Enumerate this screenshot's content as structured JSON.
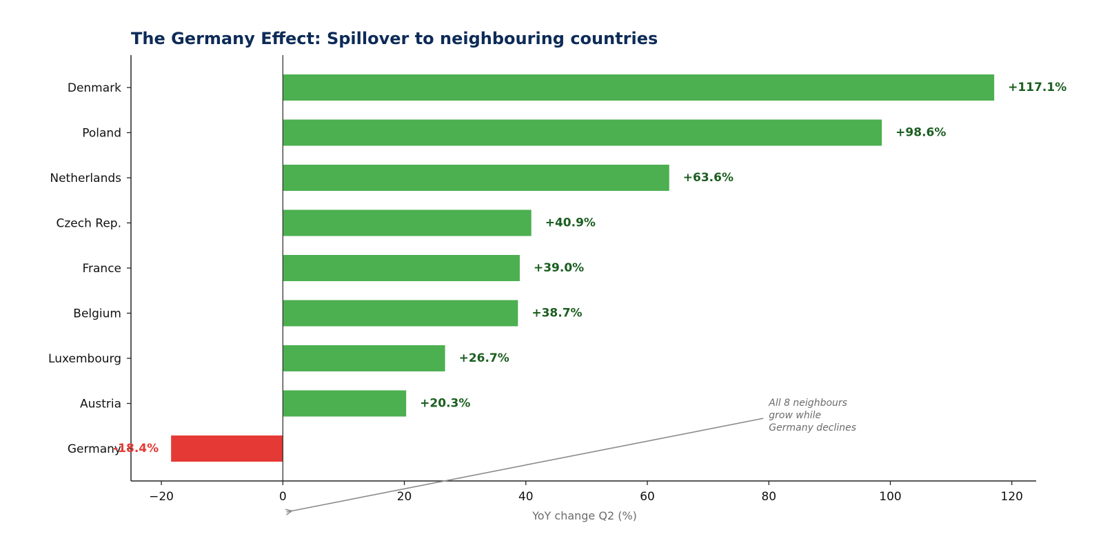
{
  "chart_data": {
    "type": "bar",
    "orientation": "horizontal",
    "title": "The Germany Effect: Spillover to neighbouring countries",
    "xlabel": "YoY change Q2 (%)",
    "ylabel": "",
    "xlim": [
      -25,
      124
    ],
    "xticks": [
      -20,
      0,
      20,
      40,
      60,
      80,
      100,
      120
    ],
    "xtick_labels": [
      "−20",
      "0",
      "20",
      "40",
      "60",
      "80",
      "100",
      "120"
    ],
    "grid": false,
    "categories": [
      "Denmark",
      "Poland",
      "Netherlands",
      "Czech Rep.",
      "France",
      "Belgium",
      "Luxembourg",
      "Austria",
      "Germany"
    ],
    "values": [
      117.1,
      98.6,
      63.6,
      40.9,
      39.0,
      38.7,
      26.7,
      20.3,
      -18.4
    ],
    "value_labels": [
      "+117.1%",
      "+98.6%",
      "+63.6%",
      "+40.9%",
      "+39.0%",
      "+38.7%",
      "+26.7%",
      "+20.3%",
      "-18.4%"
    ],
    "colors": {
      "positive_bar": "#4caf50",
      "negative_bar": "#e53935",
      "positive_label": "#1b5e20",
      "negative_label": "#e53935",
      "title": "#0d2b57",
      "annotation": "#8a8a8a"
    },
    "annotation": {
      "lines": [
        "All 8 neighbours",
        "grow while",
        "Germany declines"
      ],
      "text_anchor_point": [
        80,
        7.3
      ],
      "arrow_target": [
        0.6,
        8.0
      ]
    }
  }
}
